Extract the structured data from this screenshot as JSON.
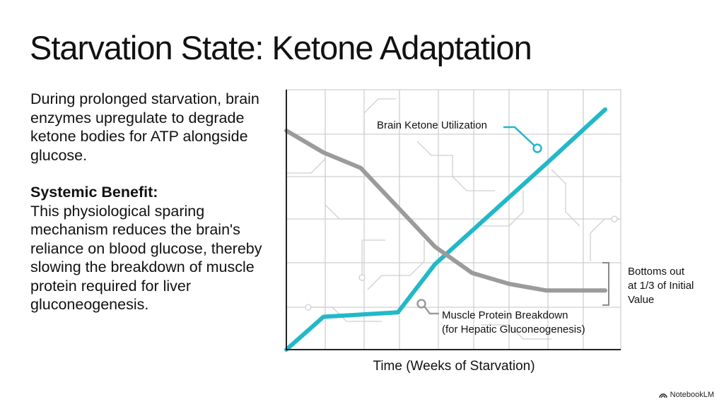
{
  "title": "Starvation State: Ketone Adaptation",
  "text": {
    "intro": "During prolonged starvation, brain enzymes upregulate to degrade ketone bodies for ATP alongside glucose.",
    "benefit_heading": "Systemic Benefit:",
    "benefit_body": "This physiological sparing mechanism reduces the brain's reliance on blood glucose, thereby slowing the breakdown of muscle protein required for liver gluconeogenesis."
  },
  "brand": "NotebookLM",
  "colors": {
    "ketone": "#22b8c8",
    "muscle": "#9b9b9b",
    "grid": "#cfcfcf",
    "axis": "#222222",
    "bracket": "#8a8a8a"
  },
  "chart_data": {
    "type": "line",
    "xlabel": "Time (Weeks of Starvation)",
    "ylabel": "",
    "xlim": [
      0,
      9
    ],
    "ylim": [
      0,
      100
    ],
    "grid": true,
    "series": [
      {
        "name": "Brain Ketone Utilization",
        "color": "#22b8c8",
        "x": [
          0,
          1,
          3,
          4,
          7,
          9
        ],
        "y": [
          0,
          15,
          17,
          39,
          85,
          110
        ]
      },
      {
        "name": "Muscle Protein Breakdown (for Hepatic Gluconeogenesis)",
        "color": "#9b9b9b",
        "x": [
          0,
          1,
          2,
          4,
          5,
          6,
          7,
          9
        ],
        "y": [
          100,
          90,
          83,
          47,
          35,
          30,
          27,
          27
        ]
      }
    ],
    "annotations": {
      "ketone_label": "Brain Ketone Utilization",
      "muscle_label_1": "Muscle Protein Breakdown",
      "muscle_label_2": "(for Hepatic Gluconeogenesis)",
      "bottom_1": "Bottoms out",
      "bottom_2": "at 1/3 of Initial",
      "bottom_3": "Value"
    }
  }
}
